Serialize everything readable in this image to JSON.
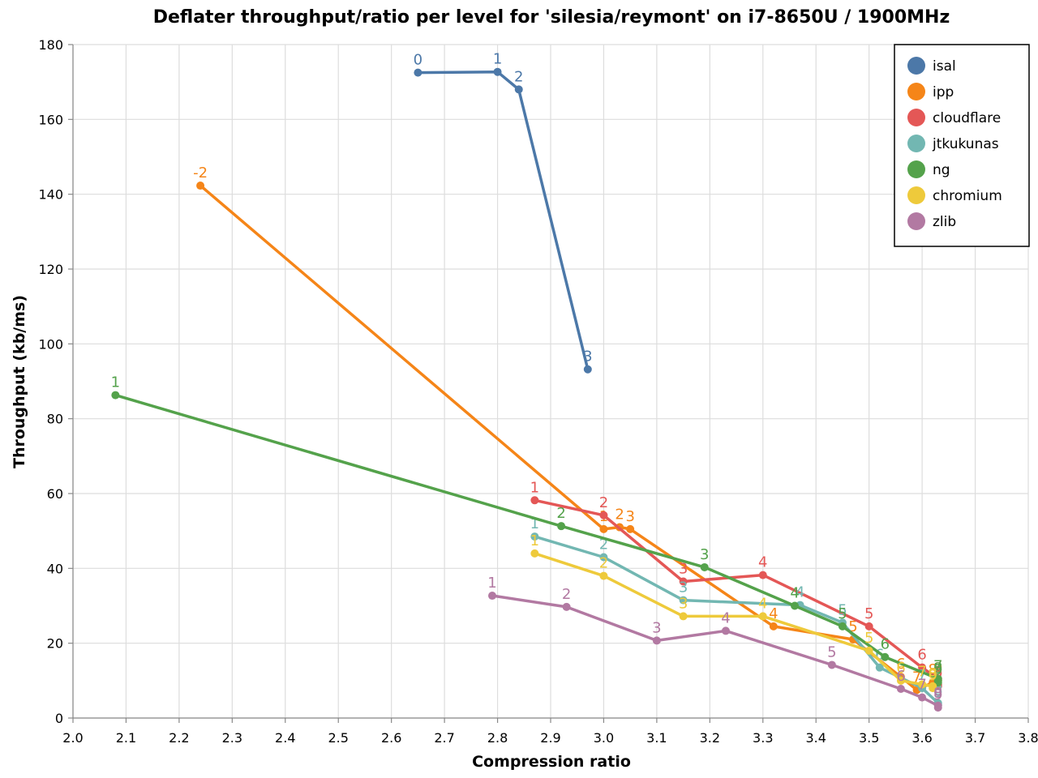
{
  "chart_data": {
    "type": "line",
    "title": "Deflater throughput/ratio per level for 'silesia/reymont' on i7-8650U / 1900MHz",
    "xlabel": "Compression ratio",
    "ylabel": "Throughput (kb/ms)",
    "xlim": [
      2.0,
      3.8
    ],
    "ylim": [
      0,
      180
    ],
    "x_ticks": [
      "2.0",
      "2.1",
      "2.2",
      "2.3",
      "2.4",
      "2.5",
      "2.6",
      "2.7",
      "2.8",
      "2.9",
      "3.0",
      "3.1",
      "3.2",
      "3.3",
      "3.4",
      "3.5",
      "3.6",
      "3.7",
      "3.8"
    ],
    "y_ticks": [
      "0",
      "20",
      "40",
      "60",
      "80",
      "100",
      "120",
      "140",
      "160",
      "180"
    ],
    "grid": true,
    "legend_position": "top-right",
    "series": [
      {
        "name": "isal",
        "color": "#4c78a8",
        "points": [
          {
            "x": 2.65,
            "y": 172.5,
            "label": "0"
          },
          {
            "x": 2.8,
            "y": 172.7,
            "label": "1"
          },
          {
            "x": 2.84,
            "y": 168.0,
            "label": "2"
          },
          {
            "x": 2.97,
            "y": 93.2,
            "label": "3"
          }
        ]
      },
      {
        "name": "ipp",
        "color": "#f58518",
        "points": [
          {
            "x": 2.24,
            "y": 142.3,
            "label": "-2"
          },
          {
            "x": 3.0,
            "y": 50.5,
            "label": "1"
          },
          {
            "x": 3.03,
            "y": 51.0,
            "label": "2"
          },
          {
            "x": 3.05,
            "y": 50.5,
            "label": "3"
          },
          {
            "x": 3.32,
            "y": 24.5,
            "label": "4"
          },
          {
            "x": 3.47,
            "y": 21.0,
            "label": "5"
          },
          {
            "x": 3.56,
            "y": 11.0,
            "label": "6"
          },
          {
            "x": 3.59,
            "y": 7.5,
            "label": "7"
          },
          {
            "x": 3.62,
            "y": 9.5,
            "label": "8"
          },
          {
            "x": 3.63,
            "y": 10.0,
            "label": "9"
          }
        ]
      },
      {
        "name": "cloudflare",
        "color": "#e45756",
        "points": [
          {
            "x": 2.87,
            "y": 58.2,
            "label": "1"
          },
          {
            "x": 3.0,
            "y": 54.2,
            "label": "2"
          },
          {
            "x": 3.15,
            "y": 36.5,
            "label": "3"
          },
          {
            "x": 3.3,
            "y": 38.2,
            "label": "4"
          },
          {
            "x": 3.5,
            "y": 24.5,
            "label": "5"
          },
          {
            "x": 3.6,
            "y": 13.5,
            "label": "6"
          },
          {
            "x": 3.63,
            "y": 10.5,
            "label": "7"
          },
          {
            "x": 3.63,
            "y": 9.0,
            "label": "8"
          },
          {
            "x": 3.63,
            "y": 8.5,
            "label": "9"
          }
        ]
      },
      {
        "name": "jtkukunas",
        "color": "#72b7b2",
        "points": [
          {
            "x": 2.87,
            "y": 48.5,
            "label": "1"
          },
          {
            "x": 3.0,
            "y": 43.0,
            "label": "2"
          },
          {
            "x": 3.15,
            "y": 31.5,
            "label": "3"
          },
          {
            "x": 3.37,
            "y": 30.2,
            "label": "4"
          },
          {
            "x": 3.45,
            "y": 25.5,
            "label": "5"
          },
          {
            "x": 3.52,
            "y": 13.5,
            "label": "6"
          },
          {
            "x": 3.6,
            "y": 8.0,
            "label": "7"
          },
          {
            "x": 3.63,
            "y": 4.0,
            "label": "8"
          },
          {
            "x": 3.63,
            "y": 3.5,
            "label": "9"
          }
        ]
      },
      {
        "name": "ng",
        "color": "#54a24b",
        "points": [
          {
            "x": 2.08,
            "y": 86.3,
            "label": "1"
          },
          {
            "x": 2.92,
            "y": 51.3,
            "label": "2"
          },
          {
            "x": 3.19,
            "y": 40.3,
            "label": "3"
          },
          {
            "x": 3.36,
            "y": 30.0,
            "label": "4"
          },
          {
            "x": 3.45,
            "y": 24.5,
            "label": "5"
          },
          {
            "x": 3.53,
            "y": 16.3,
            "label": "6"
          },
          {
            "x": 3.63,
            "y": 10.5,
            "label": "7"
          },
          {
            "x": 3.63,
            "y": 10.0,
            "label": "8"
          },
          {
            "x": 3.63,
            "y": 9.5,
            "label": "9"
          }
        ]
      },
      {
        "name": "chromium",
        "color": "#eeca3b",
        "points": [
          {
            "x": 2.87,
            "y": 44.0,
            "label": "1"
          },
          {
            "x": 3.0,
            "y": 38.0,
            "label": "2"
          },
          {
            "x": 3.15,
            "y": 27.2,
            "label": "3"
          },
          {
            "x": 3.3,
            "y": 27.2,
            "label": "4"
          },
          {
            "x": 3.5,
            "y": 18.0,
            "label": "5"
          },
          {
            "x": 3.56,
            "y": 10.0,
            "label": "6"
          },
          {
            "x": 3.6,
            "y": 9.0,
            "label": "7"
          },
          {
            "x": 3.62,
            "y": 8.5,
            "label": "8"
          },
          {
            "x": 3.62,
            "y": 8.0,
            "label": "9"
          }
        ]
      },
      {
        "name": "zlib",
        "color": "#b279a2",
        "points": [
          {
            "x": 2.79,
            "y": 32.7,
            "label": "1"
          },
          {
            "x": 2.93,
            "y": 29.7,
            "label": "2"
          },
          {
            "x": 3.1,
            "y": 20.7,
            "label": "3"
          },
          {
            "x": 3.23,
            "y": 23.3,
            "label": "4"
          },
          {
            "x": 3.43,
            "y": 14.2,
            "label": "5"
          },
          {
            "x": 3.56,
            "y": 7.8,
            "label": "6"
          },
          {
            "x": 3.6,
            "y": 5.5,
            "label": "7"
          },
          {
            "x": 3.63,
            "y": 3.3,
            "label": "8"
          },
          {
            "x": 3.63,
            "y": 2.8,
            "label": "9"
          }
        ]
      }
    ]
  }
}
